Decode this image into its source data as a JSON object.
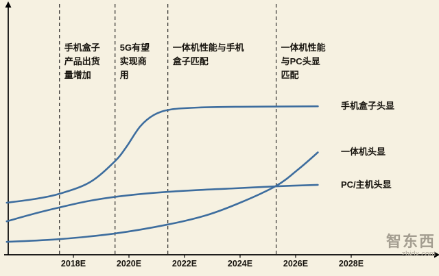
{
  "page": {
    "background": "#f6f1e1"
  },
  "chart_data": {
    "type": "line",
    "title": "",
    "grid": false,
    "line_color": "#3d6d9e",
    "axis_color": "#000000",
    "x_axis": {
      "tick_labels": [
        "2018E",
        "2020E",
        "2022E",
        "2024E",
        "2026E",
        "2028E"
      ],
      "tick_years": [
        2018,
        2020,
        2022,
        2024,
        2026,
        2028
      ],
      "range": [
        2015.6,
        2031.2
      ]
    },
    "y_axis": {
      "label": "",
      "range": [
        0,
        100
      ]
    },
    "series": [
      {
        "name": "手机盒子头显",
        "points": [
          [
            2015.6,
            21
          ],
          [
            2016.6,
            22.5
          ],
          [
            2017.5,
            24.6
          ],
          [
            2018.6,
            29.3
          ],
          [
            2019.5,
            37.8
          ],
          [
            2019.9,
            43.4
          ],
          [
            2020.4,
            51.7
          ],
          [
            2020.9,
            56.4
          ],
          [
            2021.5,
            58.6
          ],
          [
            2022.5,
            59.4
          ],
          [
            2024,
            59.7
          ],
          [
            2026.8,
            59.9
          ]
        ]
      },
      {
        "name": "一体机头显",
        "points": [
          [
            2015.6,
            5.2
          ],
          [
            2017.5,
            6.3
          ],
          [
            2019.5,
            8.6
          ],
          [
            2021.4,
            12.2
          ],
          [
            2022.8,
            16
          ],
          [
            2024,
            21
          ],
          [
            2025.3,
            27.8
          ],
          [
            2026.1,
            34.5
          ],
          [
            2026.8,
            41.3
          ]
        ]
      },
      {
        "name": "PC/主机头显",
        "points": [
          [
            2015.6,
            13.5
          ],
          [
            2016.6,
            16.6
          ],
          [
            2017.5,
            19.1
          ],
          [
            2018.6,
            21.8
          ],
          [
            2019.6,
            23.5
          ],
          [
            2020.8,
            24.9
          ],
          [
            2022.3,
            26
          ],
          [
            2023.8,
            26.8
          ],
          [
            2025.3,
            27.6
          ],
          [
            2026.8,
            28.2
          ]
        ]
      }
    ],
    "events": [
      {
        "year": 2017.5,
        "label": "手机盒子产品出货量增加",
        "text": "手机盒子\n产品出货\n量增加"
      },
      {
        "year": 2019.5,
        "label": "5G有望实现商用",
        "text": "5G有望\n实现商\n用"
      },
      {
        "year": 2021.4,
        "label": "一体机性能与手机盒子匹配",
        "text": "一体机性能与手机\n盒子匹配"
      },
      {
        "year": 2025.3,
        "label": "一体机性能与PC头显匹配",
        "text": "一体机性能\n与PC头显\n匹配"
      }
    ],
    "legend_position": "right-of-line-ends"
  },
  "watermark": {
    "brand": "智东西",
    "domain": "zhidx.com"
  }
}
